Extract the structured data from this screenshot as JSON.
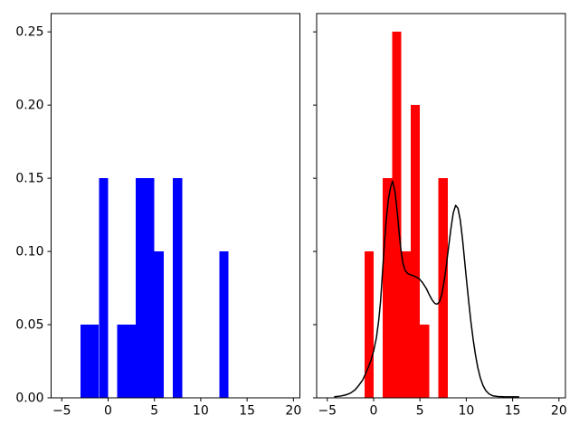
{
  "figure": {
    "background": "#ffffff",
    "spine_color": "#000000",
    "tick_color": "#000000"
  },
  "chart_data": [
    {
      "id": "left",
      "type": "bar",
      "title": "",
      "xlabel": "",
      "ylabel": "",
      "bar_color": "#0000ff",
      "grid": false,
      "legend": null,
      "xlim": [
        -6.15,
        20.7
      ],
      "ylim": [
        0,
        0.2625
      ],
      "xticks": {
        "values": [
          -5,
          0,
          5,
          10,
          15,
          20
        ],
        "labels": [
          "−5",
          "0",
          "5",
          "10",
          "15",
          "20"
        ]
      },
      "yticks": {
        "values": [
          0.0,
          0.05,
          0.1,
          0.15,
          0.2,
          0.25
        ],
        "labels": [
          "0.00",
          "0.05",
          "0.10",
          "0.15",
          "0.20",
          "0.25"
        ]
      },
      "show_ytick_labels": true,
      "bins": [
        {
          "x0": -3,
          "x1": -2,
          "density": 0.05
        },
        {
          "x0": -2,
          "x1": -1,
          "density": 0.05
        },
        {
          "x0": -1,
          "x1": 0,
          "density": 0.15
        },
        {
          "x0": 1,
          "x1": 2,
          "density": 0.05
        },
        {
          "x0": 2,
          "x1": 3,
          "density": 0.05
        },
        {
          "x0": 3,
          "x1": 4,
          "density": 0.15
        },
        {
          "x0": 4,
          "x1": 5,
          "density": 0.15
        },
        {
          "x0": 5,
          "x1": 6,
          "density": 0.1
        },
        {
          "x0": 7,
          "x1": 8,
          "density": 0.15
        },
        {
          "x0": 12,
          "x1": 13,
          "density": 0.1
        }
      ]
    },
    {
      "id": "right",
      "type": "bar+line",
      "title": "",
      "xlabel": "",
      "ylabel": "",
      "bar_color": "#ff0000",
      "line_color": "#000000",
      "line_width": 1.5,
      "grid": false,
      "legend": null,
      "xlim": [
        -6.15,
        20.7
      ],
      "ylim": [
        0,
        0.2625
      ],
      "xticks": {
        "values": [
          -5,
          0,
          5,
          10,
          15,
          20
        ],
        "labels": [
          "−5",
          "0",
          "5",
          "10",
          "15",
          "20"
        ]
      },
      "yticks": {
        "values": [
          0.0,
          0.05,
          0.1,
          0.15,
          0.2,
          0.25
        ],
        "labels": [
          "0.00",
          "0.05",
          "0.10",
          "0.15",
          "0.20",
          "0.25"
        ]
      },
      "show_ytick_labels": false,
      "bins": [
        {
          "x0": -1,
          "x1": 0,
          "density": 0.1
        },
        {
          "x0": 1,
          "x1": 2,
          "density": 0.15
        },
        {
          "x0": 2,
          "x1": 3,
          "density": 0.25
        },
        {
          "x0": 3,
          "x1": 4,
          "density": 0.1
        },
        {
          "x0": 4,
          "x1": 5,
          "density": 0.2
        },
        {
          "x0": 5,
          "x1": 6,
          "density": 0.05
        },
        {
          "x0": 7,
          "x1": 8,
          "density": 0.15
        }
      ],
      "kde_curve": [
        [
          -4.2,
          0.0008
        ],
        [
          -3.6,
          0.0012
        ],
        [
          -3.0,
          0.002
        ],
        [
          -2.5,
          0.0032
        ],
        [
          -2.0,
          0.0055
        ],
        [
          -1.6,
          0.0085
        ],
        [
          -1.2,
          0.012
        ],
        [
          -0.9,
          0.016
        ],
        [
          -0.6,
          0.0205
        ],
        [
          -0.3,
          0.0255
        ],
        [
          0.0,
          0.032
        ],
        [
          0.3,
          0.041
        ],
        [
          0.55,
          0.053
        ],
        [
          0.75,
          0.066
        ],
        [
          0.95,
          0.085
        ],
        [
          1.15,
          0.104
        ],
        [
          1.35,
          0.121
        ],
        [
          1.6,
          0.136
        ],
        [
          1.85,
          0.1445
        ],
        [
          2.05,
          0.148
        ],
        [
          2.3,
          0.141
        ],
        [
          2.55,
          0.127
        ],
        [
          2.75,
          0.113
        ],
        [
          2.95,
          0.101
        ],
        [
          3.15,
          0.0925
        ],
        [
          3.4,
          0.087
        ],
        [
          3.7,
          0.0848
        ],
        [
          4.1,
          0.0838
        ],
        [
          4.5,
          0.0828
        ],
        [
          4.9,
          0.0815
        ],
        [
          5.3,
          0.0785
        ],
        [
          5.7,
          0.0745
        ],
        [
          6.0,
          0.0705
        ],
        [
          6.3,
          0.067
        ],
        [
          6.6,
          0.0645
        ],
        [
          6.85,
          0.064
        ],
        [
          7.1,
          0.0655
        ],
        [
          7.35,
          0.0705
        ],
        [
          7.6,
          0.079
        ],
        [
          7.85,
          0.0905
        ],
        [
          8.1,
          0.1035
        ],
        [
          8.35,
          0.116
        ],
        [
          8.6,
          0.1265
        ],
        [
          8.85,
          0.1315
        ],
        [
          9.1,
          0.1295
        ],
        [
          9.35,
          0.1215
        ],
        [
          9.6,
          0.108
        ],
        [
          9.8,
          0.095
        ],
        [
          10.0,
          0.082
        ],
        [
          10.25,
          0.0665
        ],
        [
          10.5,
          0.052
        ],
        [
          10.75,
          0.0395
        ],
        [
          11.0,
          0.029
        ],
        [
          11.25,
          0.0205
        ],
        [
          11.5,
          0.014
        ],
        [
          11.8,
          0.0085
        ],
        [
          12.1,
          0.005
        ],
        [
          12.45,
          0.0027
        ],
        [
          12.85,
          0.0014
        ],
        [
          13.4,
          0.0009
        ],
        [
          14.2,
          0.0007
        ],
        [
          15.0,
          0.0007
        ],
        [
          15.65,
          0.0007
        ]
      ]
    }
  ]
}
